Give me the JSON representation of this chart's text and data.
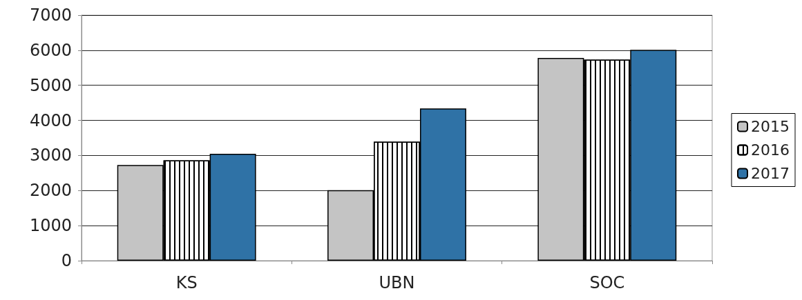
{
  "chart_data": {
    "type": "bar",
    "categories": [
      "KS",
      "UBN",
      "SOC"
    ],
    "series": [
      {
        "name": "2015",
        "color": "#c4c4c4",
        "values": [
          2730,
          2010,
          5780
        ]
      },
      {
        "name": "2016",
        "color": "#ffffff",
        "values": [
          2860,
          3390,
          5730
        ]
      },
      {
        "name": "2017",
        "color": "#2f72a6",
        "values": [
          3050,
          4340,
          6010
        ]
      }
    ],
    "ylim": [
      0,
      7000
    ],
    "yticks": [
      0,
      1000,
      2000,
      3000,
      4000,
      5000,
      6000,
      7000
    ],
    "grid": "y",
    "legend": "right"
  }
}
